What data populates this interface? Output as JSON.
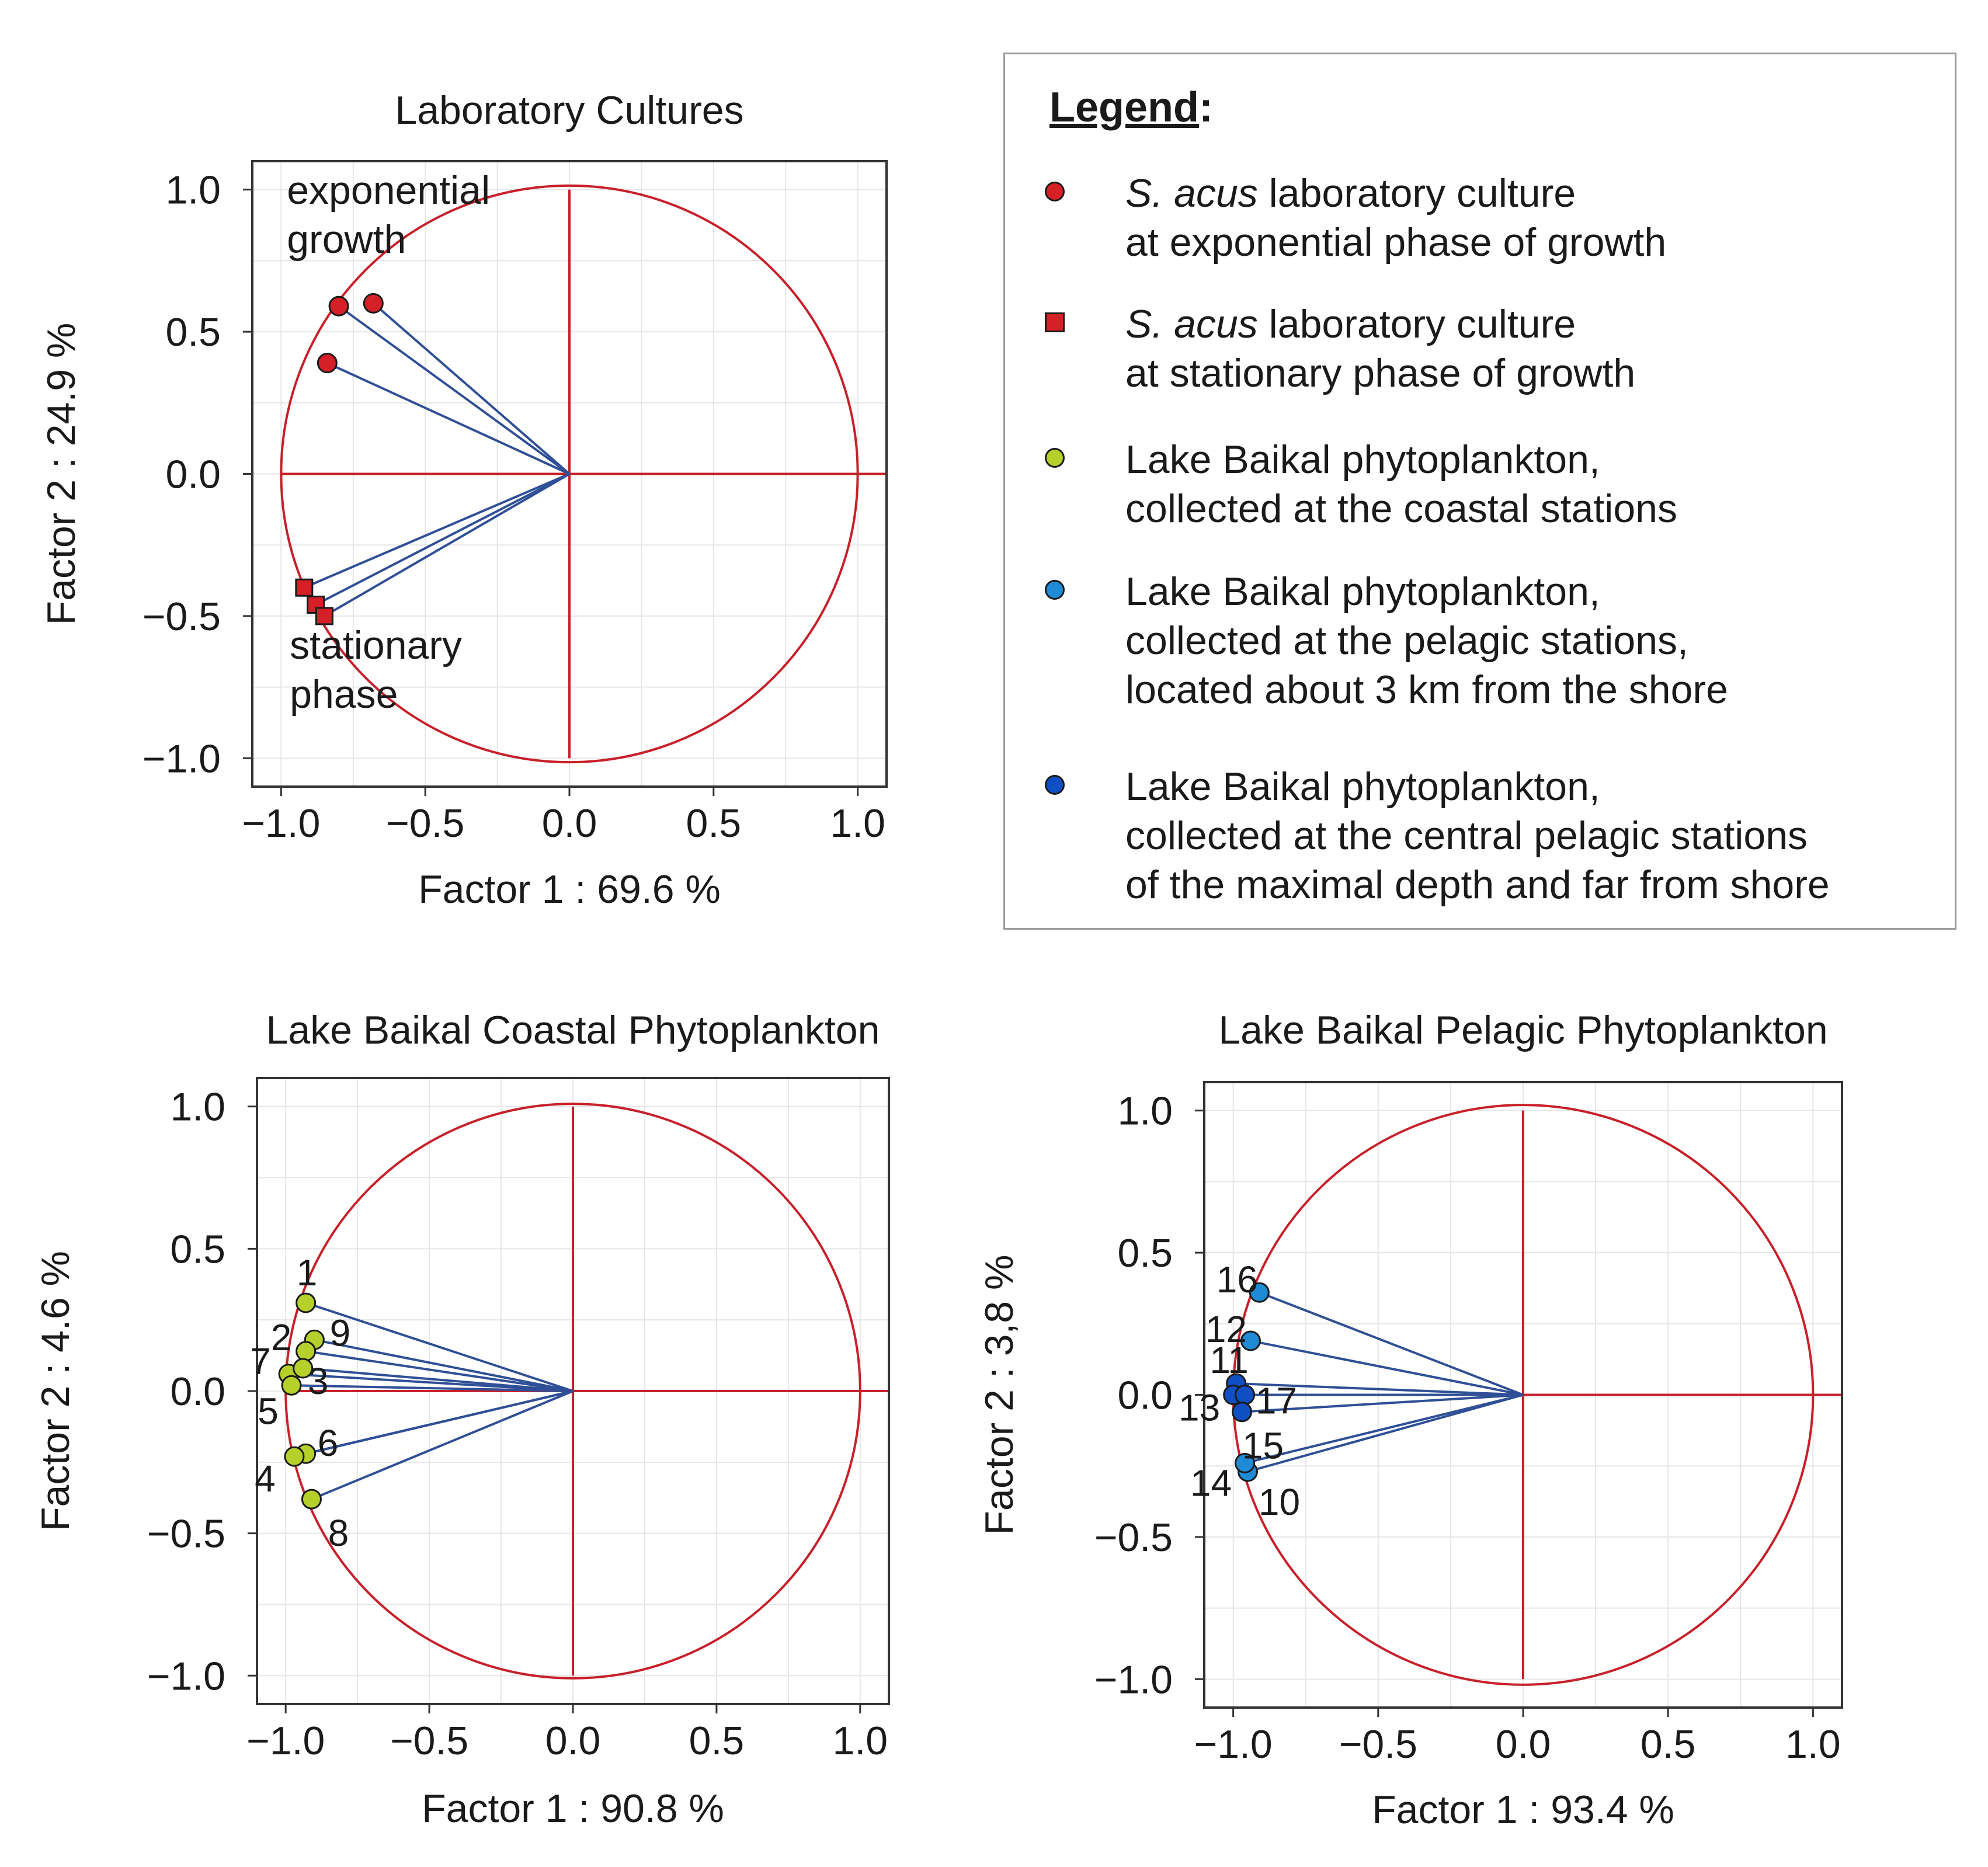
{
  "chart_data": [
    {
      "id": "lab",
      "type": "scatter",
      "title": "Laboratory Cultures",
      "xlabel": "Factor 1 : 69.6 %",
      "ylabel": "Factor 2 : 24.9 %",
      "xlim": [
        -1.1,
        1.1
      ],
      "ylim": [
        -1.1,
        1.1
      ],
      "xticks": [
        "−1.0",
        "−0.5",
        "0.0",
        "0.5",
        "1.0"
      ],
      "yticks": [
        "1.0",
        "0.5",
        "0.0",
        "−0.5",
        "−1.0"
      ],
      "annotations": [
        {
          "lines": [
            "exponential",
            "growth"
          ],
          "x": -0.98,
          "y": 0.95
        },
        {
          "lines": [
            "stationary",
            "phase"
          ],
          "x": -0.97,
          "y": -0.65
        }
      ],
      "series": [
        {
          "name": "exponential phase",
          "marker": "circle",
          "color": "#d42026",
          "points": [
            [
              -0.8,
              0.59
            ],
            [
              -0.68,
              0.6
            ],
            [
              -0.84,
              0.39
            ]
          ]
        },
        {
          "name": "stationary phase",
          "marker": "square",
          "color": "#d42026",
          "points": [
            [
              -0.92,
              -0.4
            ],
            [
              -0.88,
              -0.46
            ],
            [
              -0.85,
              -0.5
            ]
          ]
        }
      ]
    },
    {
      "id": "coastal",
      "type": "scatter",
      "title": "Lake Baikal Coastal  Phytoplankton",
      "xlabel": "Factor 1 : 90.8 %",
      "ylabel": "Factor 2 : 4.6 %",
      "xlim": [
        -1.1,
        1.1
      ],
      "ylim": [
        -1.1,
        1.1
      ],
      "xticks": [
        "−1.0",
        "−0.5",
        "0.0",
        "0.5",
        "1.0"
      ],
      "yticks": [
        "1.0",
        "0.5",
        "0.0",
        "−0.5",
        "−1.0"
      ],
      "series": [
        {
          "name": "coastal stations",
          "marker": "circle",
          "color": "#b5cf2b",
          "points": [
            {
              "label": "1",
              "x": -0.93,
              "y": 0.31
            },
            {
              "label": "9",
              "x": -0.9,
              "y": 0.18
            },
            {
              "label": "2",
              "x": -0.93,
              "y": 0.14
            },
            {
              "label": "7",
              "x": -0.99,
              "y": 0.06
            },
            {
              "label": "3",
              "x": -0.94,
              "y": 0.08
            },
            {
              "label": "5",
              "x": -0.98,
              "y": 0.02
            },
            {
              "label": "6",
              "x": -0.93,
              "y": -0.22
            },
            {
              "label": "4",
              "x": -0.97,
              "y": -0.23
            },
            {
              "label": "8",
              "x": -0.91,
              "y": -0.38
            }
          ]
        }
      ]
    },
    {
      "id": "pelagic",
      "type": "scatter",
      "title": "Lake Baikal Pelagic Phytoplankton",
      "xlabel": "Factor 1 : 93.4 %",
      "ylabel": "Factor 2 : 3,8 %",
      "xlim": [
        -1.1,
        1.1
      ],
      "ylim": [
        -1.1,
        1.1
      ],
      "xticks": [
        "−1.0",
        "−0.5",
        "0.0",
        "0.5",
        "1.0"
      ],
      "yticks": [
        "1.0",
        "0.5",
        "0.0",
        "−0.5",
        "−1.0"
      ],
      "series": [
        {
          "name": "pelagic stations",
          "marker": "circle",
          "color": "#1f8bd6",
          "points": [
            {
              "label": "16",
              "x": -0.91,
              "y": 0.36
            },
            {
              "label": "12",
              "x": -0.94,
              "y": 0.19
            },
            {
              "label": "10",
              "x": -0.95,
              "y": -0.27
            },
            {
              "label": "14",
              "x": -0.96,
              "y": -0.24
            }
          ]
        },
        {
          "name": "central pelagic stations",
          "marker": "circle",
          "color": "#0f4fc4",
          "points": [
            {
              "label": "11",
              "x": -0.99,
              "y": 0.04
            },
            {
              "label": "13",
              "x": -1.0,
              "y": 0.0
            },
            {
              "label": "17",
              "x": -0.96,
              "y": 0.0
            },
            {
              "label": "15",
              "x": -0.97,
              "y": -0.06
            }
          ]
        }
      ]
    }
  ],
  "legend": {
    "title": "Legend",
    "title_suffix": ":",
    "items": [
      {
        "italic": "S. acus",
        "rest": " laboratory culture",
        "lines": [
          "at exponential phase of growth"
        ],
        "marker": "circle",
        "color": "#d42026"
      },
      {
        "italic": "S. acus",
        "rest": " laboratory culture",
        "lines": [
          "at stationary phase of growth"
        ],
        "marker": "square",
        "color": "#d42026"
      },
      {
        "italic": "",
        "rest": "Lake Baikal phytoplankton,",
        "lines": [
          "collected at the coastal stations"
        ],
        "marker": "circle",
        "color": "#b5cf2b"
      },
      {
        "italic": "",
        "rest": "Lake Baikal phytoplankton,",
        "lines": [
          "collected at the pelagic stations,",
          "located about 3 km from the shore"
        ],
        "marker": "circle",
        "color": "#1f8bd6"
      },
      {
        "italic": "",
        "rest": "Lake Baikal phytoplankton,",
        "lines": [
          "collected at the central pelagic stations",
          "of the maximal depth and far from shore"
        ],
        "marker": "circle",
        "color": "#0f4fc4"
      }
    ]
  }
}
